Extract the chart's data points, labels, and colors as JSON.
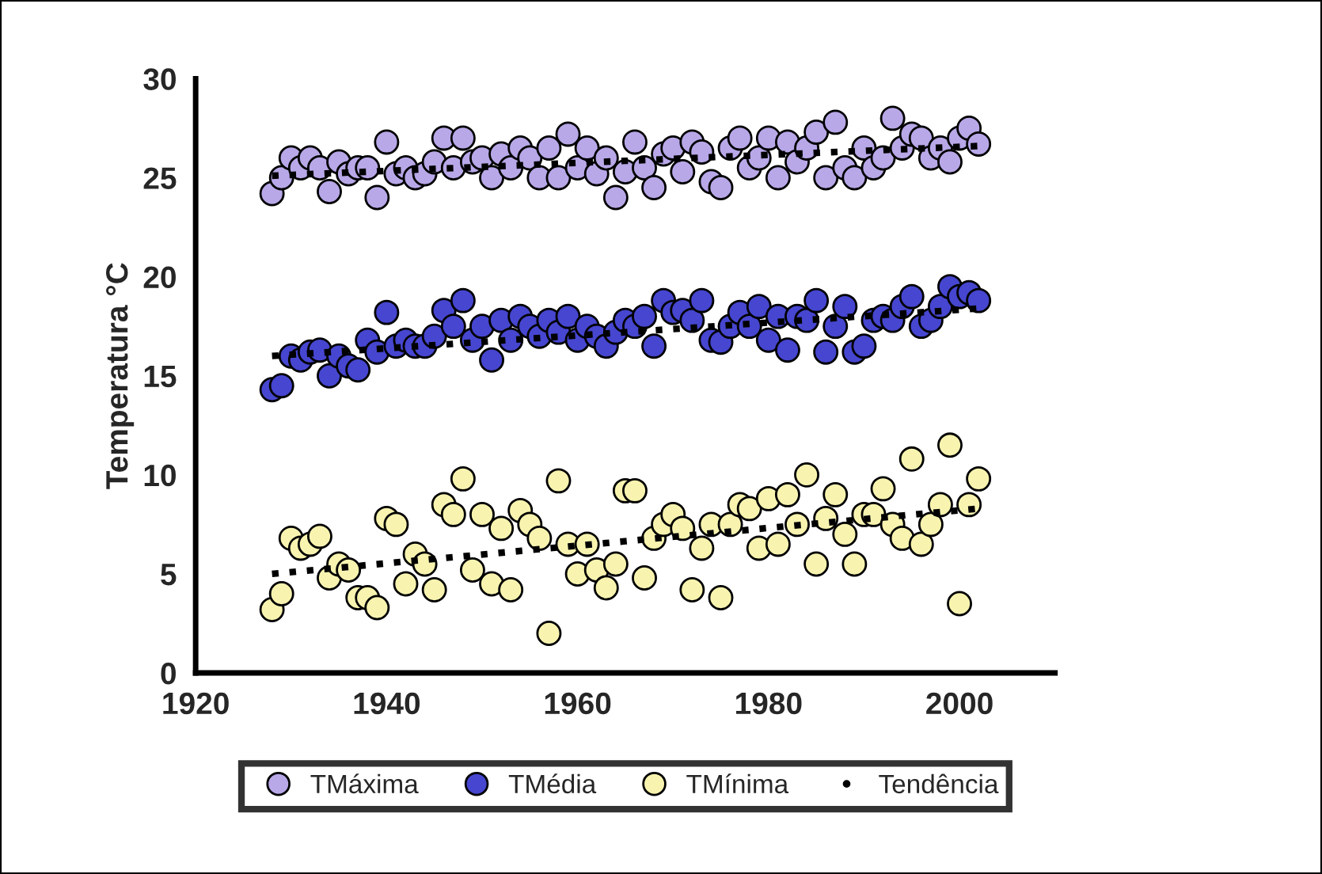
{
  "chart_data": {
    "type": "scatter",
    "ylabel": "Temperatura °C",
    "xlim": [
      1920,
      2010
    ],
    "xticks": [
      1920,
      1940,
      1960,
      1980,
      2000
    ],
    "ylim": [
      0,
      30
    ],
    "yticks": [
      0,
      5,
      10,
      15,
      20,
      25,
      30
    ],
    "grid": false,
    "legend": "bottom",
    "marker": "circle",
    "x": [
      1928,
      1929,
      1930,
      1931,
      1932,
      1933,
      1934,
      1935,
      1936,
      1937,
      1938,
      1939,
      1940,
      1941,
      1942,
      1943,
      1944,
      1945,
      1946,
      1947,
      1948,
      1949,
      1950,
      1951,
      1952,
      1953,
      1954,
      1955,
      1956,
      1957,
      1958,
      1959,
      1960,
      1961,
      1962,
      1963,
      1964,
      1965,
      1966,
      1967,
      1968,
      1969,
      1970,
      1971,
      1972,
      1973,
      1974,
      1975,
      1976,
      1977,
      1978,
      1979,
      1980,
      1981,
      1982,
      1983,
      1984,
      1985,
      1986,
      1987,
      1988,
      1989,
      1990,
      1991,
      1992,
      1993,
      1994,
      1995,
      1996,
      1997,
      1998,
      1999,
      2000,
      2001,
      2002
    ],
    "series": [
      {
        "name": "TMáxima",
        "color": "#b8a8e8",
        "values": [
          24.2,
          25,
          26,
          25.5,
          26,
          25.5,
          24.3,
          25.8,
          25.2,
          25.5,
          25.5,
          24,
          26.8,
          25.2,
          25.5,
          25,
          25.2,
          25.8,
          27,
          25.5,
          27,
          25.8,
          26,
          25,
          26.2,
          25.5,
          26.5,
          26,
          25,
          26.5,
          25,
          27.2,
          25.5,
          26.5,
          25.2,
          26,
          24,
          25.3,
          26.8,
          25.5,
          24.5,
          26.2,
          26.5,
          25.3,
          26.8,
          26.3,
          24.8,
          24.5,
          26.5,
          27,
          25.5,
          26,
          27,
          25,
          26.8,
          25.8,
          26.5,
          27.3,
          25,
          27.8,
          25.5,
          25,
          26.5,
          25.5,
          26,
          28,
          26.5,
          27.2,
          27,
          26,
          26.5,
          25.8,
          27,
          27.5,
          26.7
        ]
      },
      {
        "name": "TMédia",
        "color": "#4646d0",
        "values": [
          14.3,
          14.5,
          16,
          15.8,
          16.2,
          16.3,
          15,
          16,
          15.5,
          15.3,
          16.8,
          16.2,
          18.2,
          16.5,
          16.8,
          16.5,
          16.5,
          17,
          18.3,
          17.5,
          18.8,
          16.8,
          17.5,
          15.8,
          17.8,
          16.8,
          18,
          17.5,
          17,
          17.8,
          17.2,
          18,
          16.8,
          17.5,
          17,
          16.5,
          17.2,
          17.8,
          17.5,
          18,
          16.5,
          18.8,
          18.2,
          18.3,
          17.8,
          18.8,
          16.8,
          16.7,
          17.5,
          18.2,
          17.5,
          18.5,
          16.8,
          18,
          16.3,
          18,
          17.8,
          18.8,
          16.2,
          17.5,
          18.5,
          16.2,
          16.5,
          17.8,
          18,
          17.8,
          18.5,
          19,
          17.5,
          17.8,
          18.5,
          19.5,
          19,
          19.2,
          18.8
        ]
      },
      {
        "name": "TMínima",
        "color": "#f8f4b0",
        "values": [
          3.2,
          4,
          6.8,
          6.3,
          6.5,
          6.9,
          4.8,
          5.5,
          5.2,
          3.8,
          3.8,
          3.3,
          7.8,
          7.5,
          4.5,
          6,
          5.5,
          4.2,
          8.5,
          8,
          9.8,
          5.2,
          8,
          4.5,
          7.3,
          4.2,
          8.2,
          7.5,
          6.8,
          2,
          9.7,
          6.5,
          5,
          6.5,
          5.2,
          4.3,
          5.5,
          9.2,
          9.2,
          4.8,
          6.8,
          7.5,
          8,
          7.3,
          4.2,
          6.3,
          7.5,
          3.8,
          7.5,
          8.5,
          8.3,
          6.3,
          8.8,
          6.5,
          9,
          7.5,
          10,
          5.5,
          7.8,
          9,
          7,
          5.5,
          8,
          8,
          9.3,
          7.5,
          6.8,
          10.8,
          6.5,
          7.5,
          8.5,
          11.5,
          3.5,
          8.5,
          9.8
        ]
      },
      {
        "name": "Tendência",
        "type": "line",
        "marker": "none",
        "color": "#000000",
        "line_style": "dotted",
        "x": [
          1928,
          1965,
          2002
        ],
        "values": [
          25.1,
          25.85,
          26.6
        ]
      },
      {
        "type": "line",
        "marker": "none",
        "color": "#000000",
        "line_style": "dotted",
        "x": [
          1928,
          1965,
          2002
        ],
        "values": [
          16.0,
          17.2,
          18.4
        ]
      },
      {
        "type": "line",
        "marker": "none",
        "color": "#000000",
        "line_style": "dotted",
        "x": [
          1928,
          1965,
          2002
        ],
        "values": [
          5.0,
          6.65,
          8.3
        ]
      }
    ]
  }
}
